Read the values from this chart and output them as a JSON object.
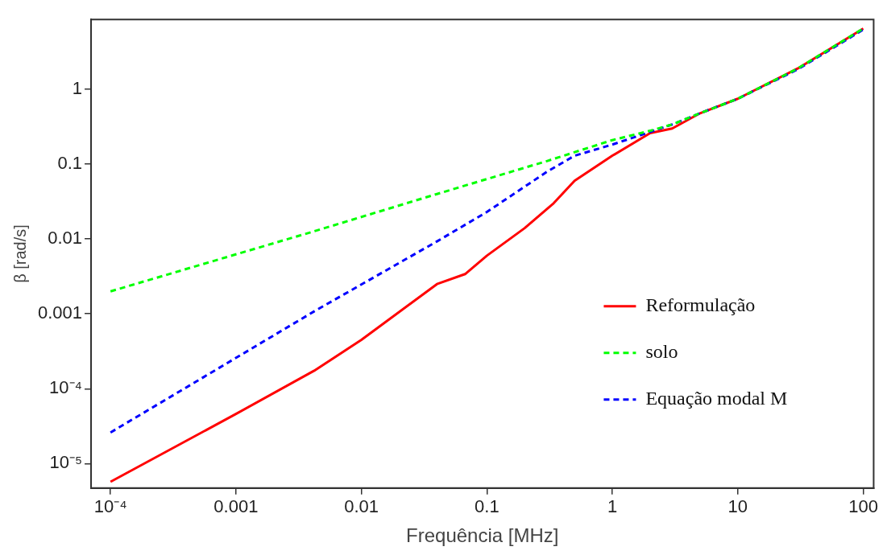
{
  "chart_data": {
    "type": "line",
    "xlabel": "Frequência [MHz]",
    "ylabel": "β [rad/s]",
    "log": "xy",
    "grid": false,
    "legend": "bottom right",
    "marker": "none",
    "xlim": [
      7.4e-05,
      121
    ],
    "ylim": [
      4.7e-06,
      8.6
    ],
    "xticks": [
      {
        "value": 0.0001,
        "label": "10⁻⁴"
      },
      0.001,
      0.01,
      0.1,
      1,
      10,
      100
    ],
    "yticks": [
      {
        "value": 1e-05,
        "label": "10⁻⁵"
      },
      {
        "value": 0.0001,
        "label": "10⁻⁴"
      },
      0.001,
      0.01,
      0.1,
      1
    ],
    "series": [
      {
        "name": "Reformulação",
        "color": "#ff0000",
        "line_style": "solid",
        "x": [
          0.0001,
          0.001,
          0.0042,
          0.01,
          0.04,
          0.067,
          0.1,
          0.2,
          0.34,
          0.5,
          1,
          2,
          3,
          5,
          10,
          30,
          100
        ],
        "values": [
          5.7e-06,
          4.6e-05,
          0.000174,
          0.00045,
          0.0025,
          0.0034,
          0.006,
          0.014,
          0.03,
          0.06,
          0.13,
          0.26,
          0.3,
          0.48,
          0.75,
          1.9,
          6.5
        ]
      },
      {
        "name": "solo",
        "color": "#00ff00",
        "line_style": "dashed",
        "x": [
          0.0001,
          0.0042,
          0.04,
          0.3,
          1,
          2,
          3,
          5,
          10,
          30,
          100
        ],
        "values": [
          0.002,
          0.0127,
          0.04,
          0.11,
          0.21,
          0.28,
          0.34,
          0.48,
          0.75,
          1.9,
          6.5
        ]
      },
      {
        "name": "Equação modal M",
        "color": "#0000ff",
        "line_style": "dashed",
        "x": [
          0.0001,
          0.0042,
          0.04,
          0.1,
          0.3,
          0.5,
          1,
          2,
          3,
          5,
          10,
          30,
          100
        ],
        "values": [
          2.6e-05,
          0.00108,
          0.0093,
          0.023,
          0.079,
          0.13,
          0.183,
          0.27,
          0.34,
          0.48,
          0.75,
          1.85,
          6.3
        ]
      }
    ]
  }
}
